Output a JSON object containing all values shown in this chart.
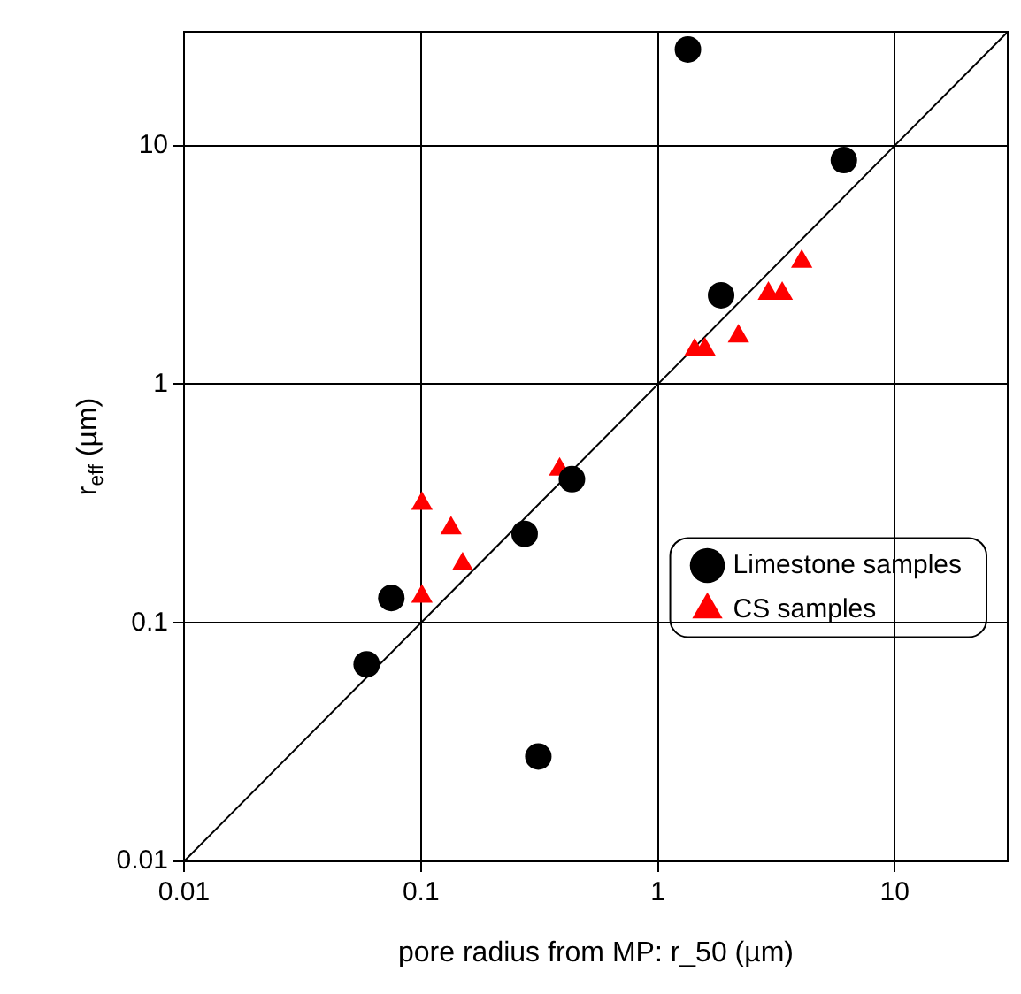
{
  "chart_data": {
    "type": "scatter",
    "xlabel": "pore radius from MP: r_50 (µm)",
    "ylabel": "r$_{eff}$ (µm)",
    "log": "xy",
    "grid": true,
    "legend": "right",
    "marker": "circle",
    "xlim": [
      0.01,
      30
    ],
    "ylim": [
      0.01,
      30
    ],
    "xticks": [
      0.01,
      0.1,
      1,
      10
    ],
    "yticks": [
      0.01,
      0.1,
      1,
      10
    ],
    "series": [
      {
        "name": "Limestone samples",
        "color": "#000000",
        "x": [
          0.059,
          0.075,
          0.274,
          0.434,
          0.313,
          1.34,
          1.85,
          6.1
        ],
        "values": [
          0.067,
          0.127,
          0.236,
          0.4,
          0.0275,
          25.3,
          2.36,
          8.7
        ]
      },
      {
        "name": "CS samples",
        "color": "#ff0000",
        "marker": "triangle",
        "x": [
          0.101,
          0.101,
          0.134,
          0.15,
          0.385,
          1.43,
          1.58,
          2.19,
          2.93,
          3.35,
          4.05
        ],
        "values": [
          0.316,
          0.129,
          0.249,
          0.176,
          0.44,
          1.39,
          1.4,
          1.59,
          2.4,
          2.4,
          3.27
        ]
      },
      {
        "type": "line",
        "color": "#000000",
        "marker": "none",
        "x": [
          0.01,
          30
        ],
        "values": [
          0.01,
          30
        ]
      }
    ]
  }
}
